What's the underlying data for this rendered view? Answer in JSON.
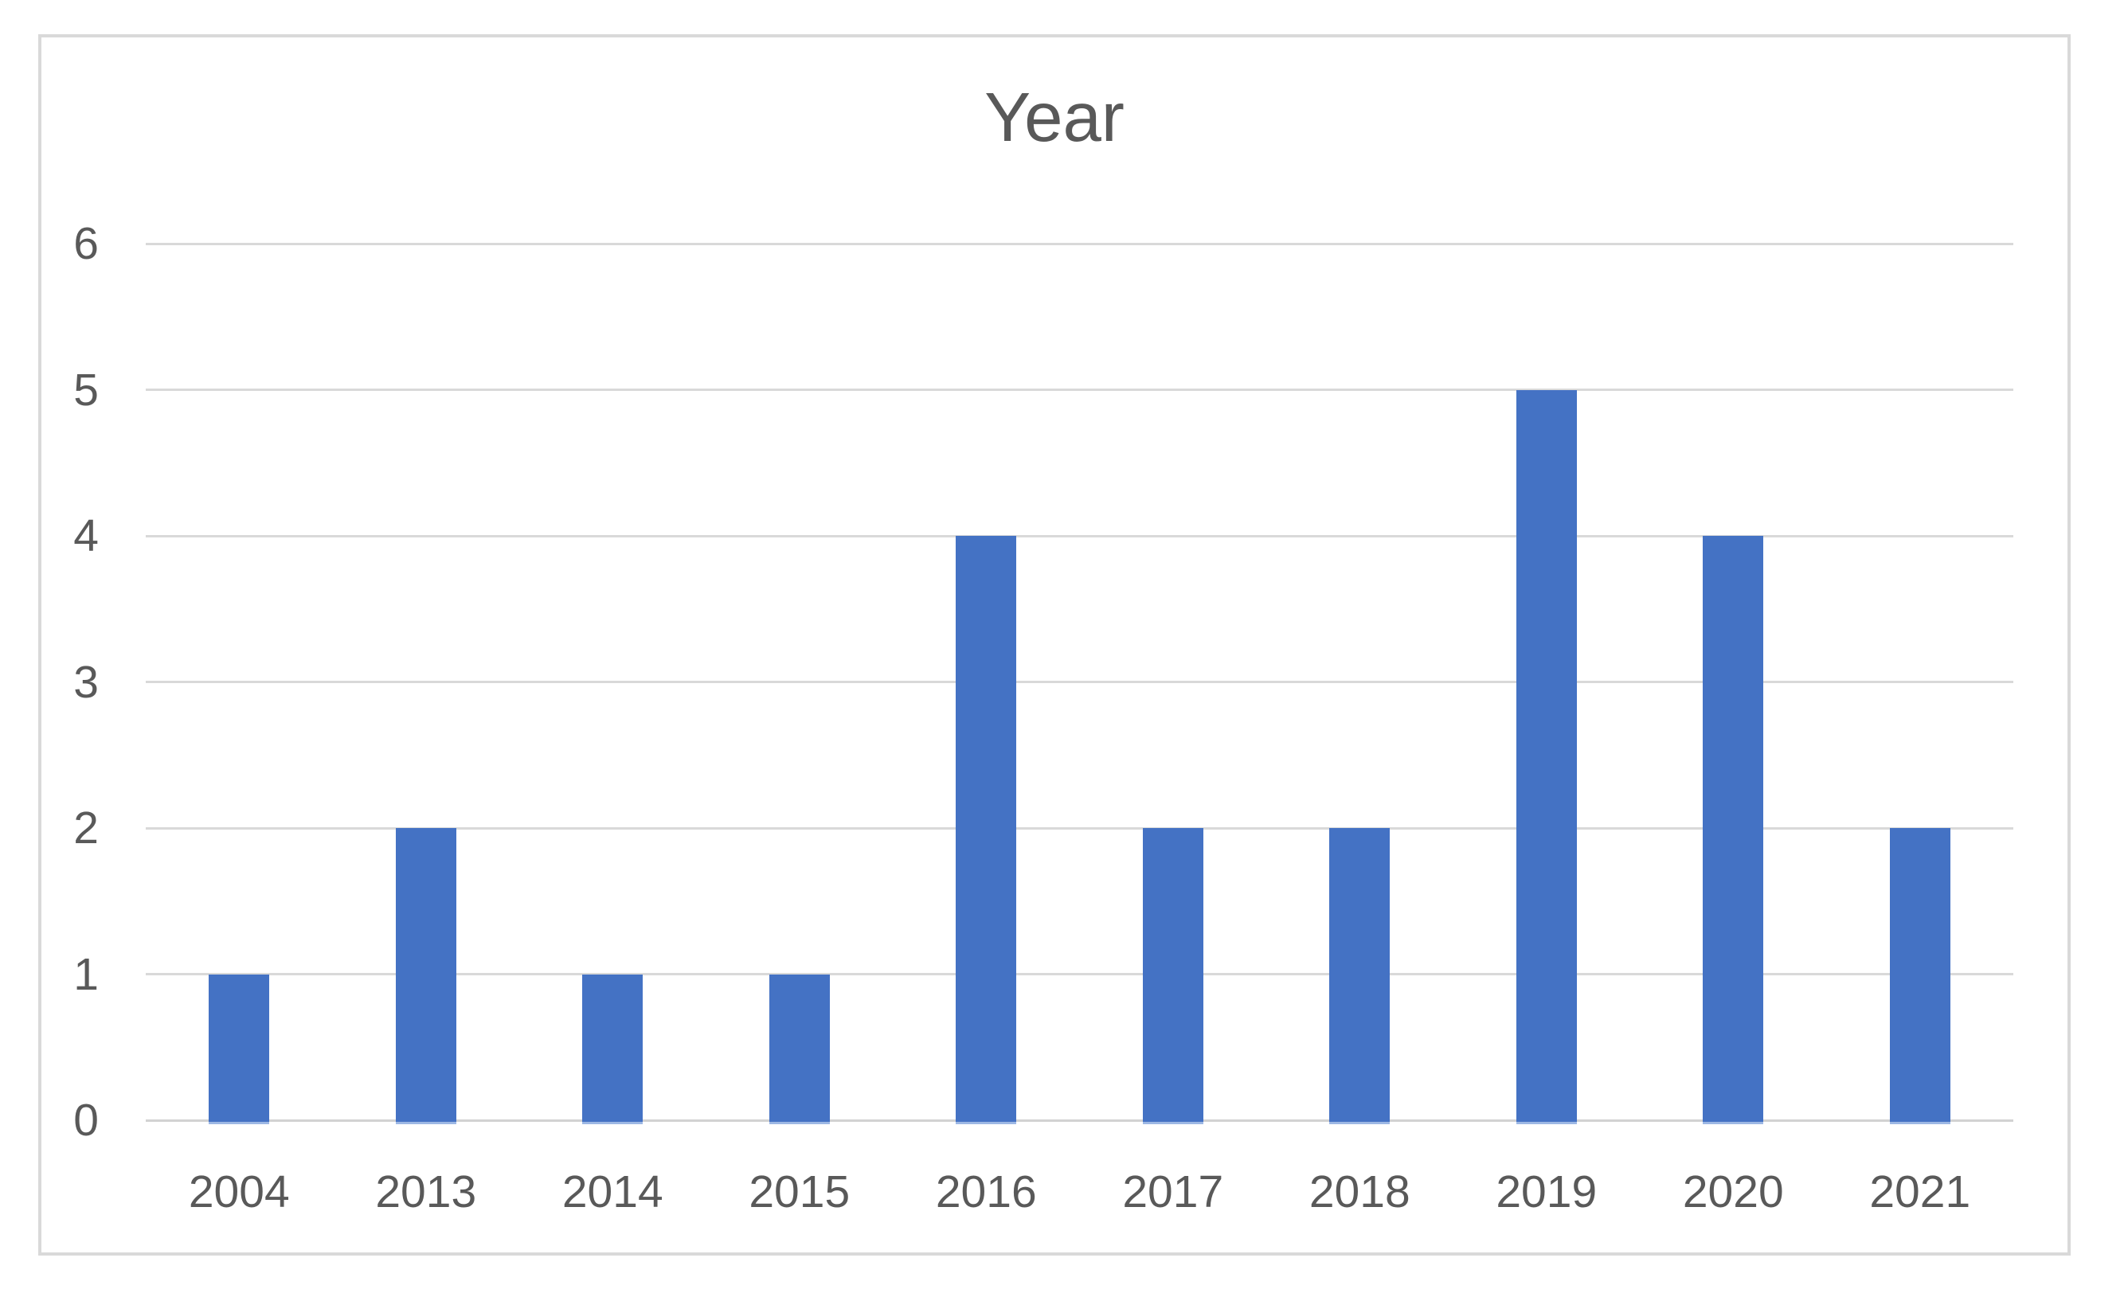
{
  "chart_data": {
    "type": "bar",
    "title": "Year",
    "categories": [
      "2004",
      "2013",
      "2014",
      "2015",
      "2016",
      "2017",
      "2018",
      "2019",
      "2020",
      "2021"
    ],
    "values": [
      1,
      2,
      1,
      1,
      4,
      2,
      2,
      5,
      4,
      2
    ],
    "xlabel": "",
    "ylabel": "",
    "ylim": [
      0,
      6
    ],
    "yticks": [
      0,
      1,
      2,
      3,
      4,
      5,
      6
    ],
    "grid": true,
    "legend_position": "none",
    "colors": {
      "bar": "#4472C4",
      "bar_foot": "#9DB8E4",
      "gridline": "#D9D9D9",
      "axis_line": "#D2D2D2",
      "text": "#595959",
      "frame_border": "#D9D9D9",
      "background": "#FFFFFF"
    }
  }
}
